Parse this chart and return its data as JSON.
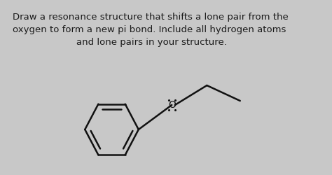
{
  "title_lines": [
    "Draw a resonance structure that shifts a lone pair from the",
    "oxygen to form a new pi bond. Include all hydrogen atoms",
    "and lone pairs in your structure."
  ],
  "title_fontsize": 9.5,
  "bg_color": "#c8c8c8",
  "text_color": "#1a1a1a",
  "line_color": "#111111",
  "fig_width": 4.74,
  "fig_height": 2.5,
  "dpi": 100
}
